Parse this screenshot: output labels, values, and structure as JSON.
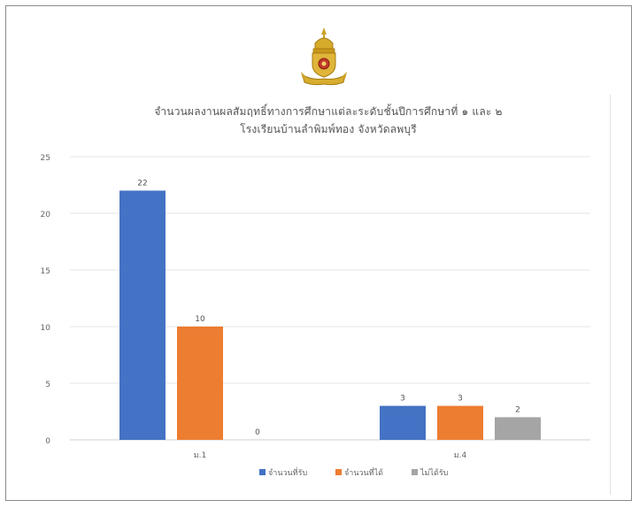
{
  "chart_data": {
    "type": "bar",
    "title": "จำนวนผลงานผลสัมฤทธิ์ทางการศึกษาแต่ละระดับชั้นปีการศึกษาที่ ๑ และ ๒",
    "subtitle": "โรงเรียนบ้านลำพิมพ์ทอง จังหวัดลพบุรี",
    "categories": [
      "ม.1",
      "ม.4"
    ],
    "series": [
      {
        "name": "จำนวนที่รับ",
        "color": "#4472c4",
        "values": [
          22,
          3
        ]
      },
      {
        "name": "จำนวนที่ได้",
        "color": "#ed7d31",
        "values": [
          10,
          3
        ]
      },
      {
        "name": "ไม่ได้รับ",
        "color": "#a5a5a5",
        "values": [
          0,
          2
        ]
      }
    ],
    "ylim": [
      0,
      25
    ],
    "yticks": [
      0,
      5,
      10,
      15,
      20,
      25
    ],
    "ytick_labels": [
      "0",
      "5",
      "10",
      "15",
      "20",
      "25"
    ],
    "grid": true,
    "legend": "bottom",
    "xlabel": "",
    "ylabel": ""
  }
}
